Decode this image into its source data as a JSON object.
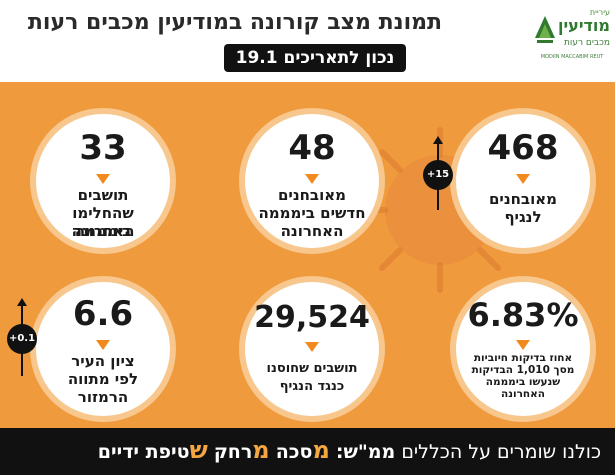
{
  "header": {
    "title": "תמונת מצב קורונה במודיעין מכבים רעות",
    "date_badge": "נכון לתאריכים 19.1"
  },
  "logo": {
    "small": "עיריית",
    "main": "מודיעין",
    "sub": "מכבים רעות",
    "english": "MODIIN MACCABIM REUT"
  },
  "stats": {
    "infected": {
      "value": "468",
      "label_line1": "מאובחנים",
      "label_line2": "לנגיף",
      "change": "+15"
    },
    "new_cases": {
      "value": "48",
      "label_line1": "מאובחנים",
      "label_line2": "חדשים בימממה",
      "label_line3": "האחרונה"
    },
    "recovered": {
      "value": "33",
      "label_line1": "תושבים",
      "label_line2": "שהחלימו בימממה",
      "label_line3": "האחרונה"
    },
    "positive_rate": {
      "value": "6.83%",
      "label_line1": "אחוז בדיקות חיוביות",
      "label_line2": "מסך 1,010 הבדיקות",
      "label_line3": "שנעשו בימממה",
      "label_line4": "האחרונה"
    },
    "vaccinated": {
      "value": "29,524",
      "label_line1": "תושבים שחוסנו",
      "label_line2": "כנגד הנגיף"
    },
    "city_score": {
      "value": "6.6",
      "label_line1": "ציון העיר",
      "label_line2": "לפי מתווה",
      "label_line3": "הרמזור",
      "change": "+0.1"
    }
  },
  "footer": {
    "intro": "כולנו שומרים על הכללים",
    "mamash": "ממ\"ש:",
    "m1": "מ",
    "w1": "סכה",
    "m2": "מ",
    "w2": "רחק",
    "m3": "ש",
    "w3": "טיפת ידיים"
  },
  "colors": {
    "background": "#f09a3e",
    "accent_triangle": "#f08a1e",
    "circle_ring": "#f7c78d",
    "footer_highlight": "#f4a640"
  }
}
